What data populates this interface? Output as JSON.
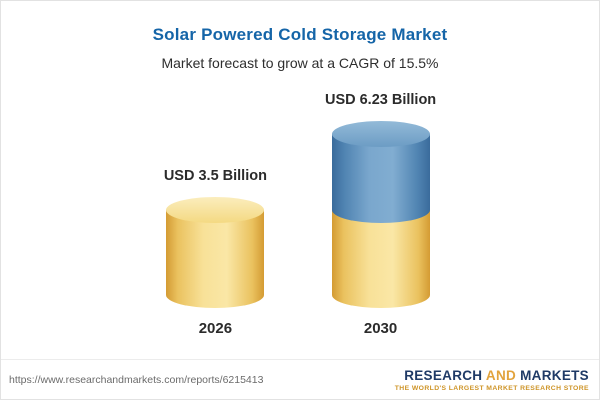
{
  "header": {
    "title": "Solar Powered Cold Storage Market",
    "subtitle": "Market forecast to grow at a CAGR of 15.5%"
  },
  "chart_data": {
    "type": "bar",
    "title": "Solar Powered Cold Storage Market",
    "subtitle": "Market forecast to grow at a CAGR of 15.5%",
    "categories": [
      "2026",
      "2030"
    ],
    "values": [
      3.5,
      6.23
    ],
    "value_labels": [
      "USD 3.5 Billion",
      "USD 6.23 Billion"
    ],
    "unit": "USD Billion",
    "cagr": "15.5%",
    "xlabel": "",
    "ylabel": "",
    "legend": "none",
    "grid": false,
    "bar_style": "3d-cylinder",
    "colors": {
      "bar_2026": "#F3D57E",
      "bar_2030_top": "#6FA0C8",
      "bar_2030_bottom": "#F3D57E",
      "title": "#1565A8"
    }
  },
  "footer": {
    "url": "https://www.researchandmarkets.com/reports/6215413",
    "logo": {
      "word1": "RESEARCH",
      "word2": "AND",
      "word3": "MARKETS",
      "tagline": "THE WORLD'S LARGEST MARKET RESEARCH STORE"
    }
  }
}
